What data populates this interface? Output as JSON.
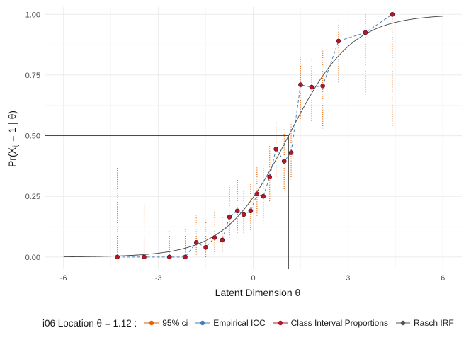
{
  "chart_data": {
    "type": "line",
    "title": "",
    "xlabel": "Latent Dimension θ",
    "ylabel_main": "Pr(X",
    "ylabel_sub": "ij",
    "ylabel_rest": " = 1 | θ)",
    "xlim": [
      -6,
      6
    ],
    "ylim": [
      0,
      1
    ],
    "xticks": [
      -6,
      -3,
      0,
      3,
      6
    ],
    "xtick_labels": [
      "-6",
      "-3",
      "0",
      "3",
      "6"
    ],
    "yticks": [
      0,
      0.25,
      0.5,
      0.75,
      1
    ],
    "ytick_labels": [
      "0.00",
      "0.25",
      "0.50",
      "0.75",
      "1.00"
    ],
    "grid": true,
    "legend_position": "bottom",
    "item_location": 1.12,
    "reference_prob": 0.5,
    "rasch_x_range": [
      -6,
      6
    ],
    "class_interval_points": [
      {
        "x": -4.3,
        "y": 0.0,
        "lo": 0.0,
        "hi": 0.37
      },
      {
        "x": -3.45,
        "y": 0.0,
        "lo": 0.0,
        "hi": 0.22
      },
      {
        "x": -2.65,
        "y": 0.0,
        "lo": 0.0,
        "hi": 0.11
      },
      {
        "x": -2.15,
        "y": 0.0,
        "lo": 0.0,
        "hi": 0.12
      },
      {
        "x": -1.8,
        "y": 0.06,
        "lo": 0.01,
        "hi": 0.17
      },
      {
        "x": -1.5,
        "y": 0.04,
        "lo": 0.0,
        "hi": 0.15
      },
      {
        "x": -1.22,
        "y": 0.08,
        "lo": 0.02,
        "hi": 0.19
      },
      {
        "x": -0.98,
        "y": 0.07,
        "lo": 0.02,
        "hi": 0.17
      },
      {
        "x": -0.75,
        "y": 0.165,
        "lo": 0.08,
        "hi": 0.29
      },
      {
        "x": -0.5,
        "y": 0.19,
        "lo": 0.1,
        "hi": 0.32
      },
      {
        "x": -0.3,
        "y": 0.175,
        "lo": 0.1,
        "hi": 0.27
      },
      {
        "x": -0.08,
        "y": 0.19,
        "lo": 0.11,
        "hi": 0.3
      },
      {
        "x": 0.12,
        "y": 0.26,
        "lo": 0.17,
        "hi": 0.37
      },
      {
        "x": 0.32,
        "y": 0.25,
        "lo": 0.15,
        "hi": 0.38
      },
      {
        "x": 0.52,
        "y": 0.33,
        "lo": 0.23,
        "hi": 0.46
      },
      {
        "x": 0.72,
        "y": 0.445,
        "lo": 0.32,
        "hi": 0.57
      },
      {
        "x": 0.98,
        "y": 0.395,
        "lo": 0.28,
        "hi": 0.53
      },
      {
        "x": 1.2,
        "y": 0.43,
        "lo": 0.32,
        "hi": 0.55
      },
      {
        "x": 1.5,
        "y": 0.71,
        "lo": 0.57,
        "hi": 0.84
      },
      {
        "x": 1.85,
        "y": 0.7,
        "lo": 0.56,
        "hi": 0.82
      },
      {
        "x": 2.2,
        "y": 0.705,
        "lo": 0.53,
        "hi": 0.85
      },
      {
        "x": 2.7,
        "y": 0.89,
        "lo": 0.72,
        "hi": 0.98
      },
      {
        "x": 3.55,
        "y": 0.925,
        "lo": 0.67,
        "hi": 1.0
      },
      {
        "x": 4.4,
        "y": 1.0,
        "lo": 0.54,
        "hi": 1.0
      }
    ],
    "legend_title_prefix": "i06 Location  θ = ",
    "legend_title_value": "1.12",
    "legend_title_suffix": " :",
    "legend": [
      {
        "label": "95% ci",
        "color": "#e66101",
        "style": "ci"
      },
      {
        "label": "Empirical ICC",
        "color": "#4a7fb5",
        "style": "empirical"
      },
      {
        "label": "Class Interval Proportions",
        "color": "#b2182b",
        "style": "point"
      },
      {
        "label": "Rasch IRF",
        "color": "#555555",
        "style": "line"
      }
    ]
  }
}
